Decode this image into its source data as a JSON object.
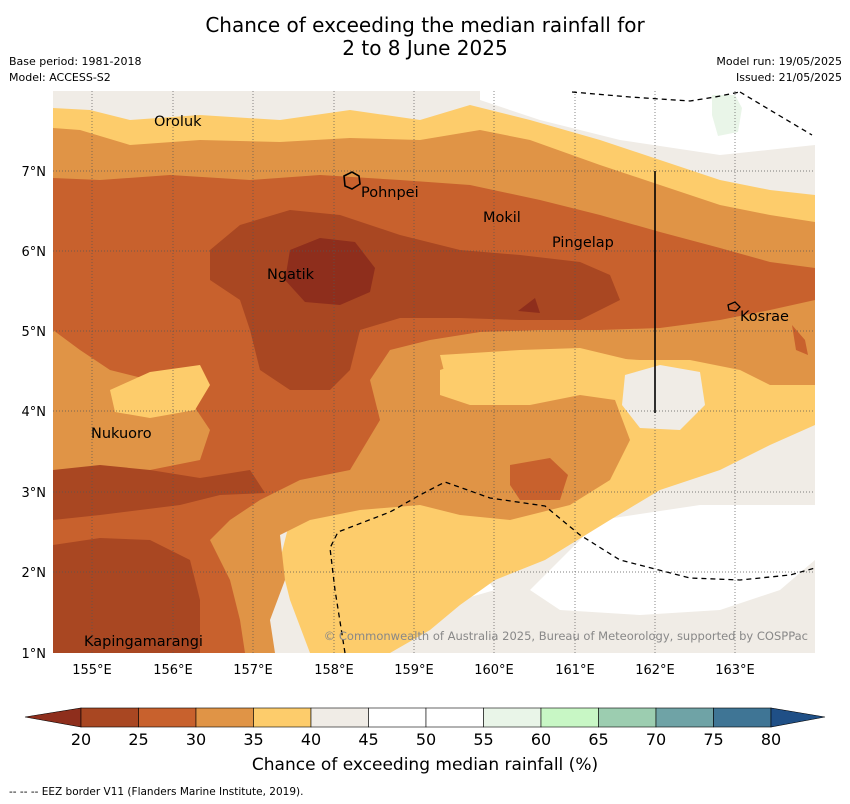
{
  "title_line1": "Chance of exceeding the median rainfall for",
  "title_line2": "2 to 8 June 2025",
  "meta": {
    "base_period": "Base period: 1981-2018",
    "model": "Model: ACCESS-S2",
    "model_run": "Model run: 19/05/2025",
    "issued": "Issued: 21/05/2025"
  },
  "axes": {
    "lon_labels": [
      "155°E",
      "156°E",
      "157°E",
      "158°E",
      "159°E",
      "160°E",
      "161°E",
      "162°E",
      "163°E"
    ],
    "lat_labels": [
      "7°N",
      "6°N",
      "5°N",
      "4°N",
      "3°N",
      "2°N",
      "1°N"
    ]
  },
  "places": [
    {
      "name": "Oroluk"
    },
    {
      "name": "Pohnpei"
    },
    {
      "name": "Mokil"
    },
    {
      "name": "Pingelap"
    },
    {
      "name": "Ngatik"
    },
    {
      "name": "Kosrae"
    },
    {
      "name": "Nukuoro"
    },
    {
      "name": "Kapingamarangi"
    }
  ],
  "copyright": "© Commonwealth of Australia 2025, Bureau of Meteorology, supported by COSPPac",
  "colorbar": {
    "label": "Chance of exceeding median rainfall (%)",
    "ticks": [
      "20",
      "25",
      "30",
      "35",
      "40",
      "45",
      "50",
      "55",
      "60",
      "65",
      "70",
      "75",
      "80"
    ],
    "colors": [
      "#a94722",
      "#c8612d",
      "#e09446",
      "#fdcc6b",
      "#f0ece6",
      "#ffffff",
      "#ffffff",
      "#e9f5e8",
      "#c8f7c5",
      "#9ccdb0",
      "#6fa3a6",
      "#3f7595"
    ],
    "under_color": "#8e2e1c",
    "over_color": "#1f4f86"
  },
  "footnote": "--  --  -- EEZ border V11 (Flanders Marine Institute, 2019)."
}
